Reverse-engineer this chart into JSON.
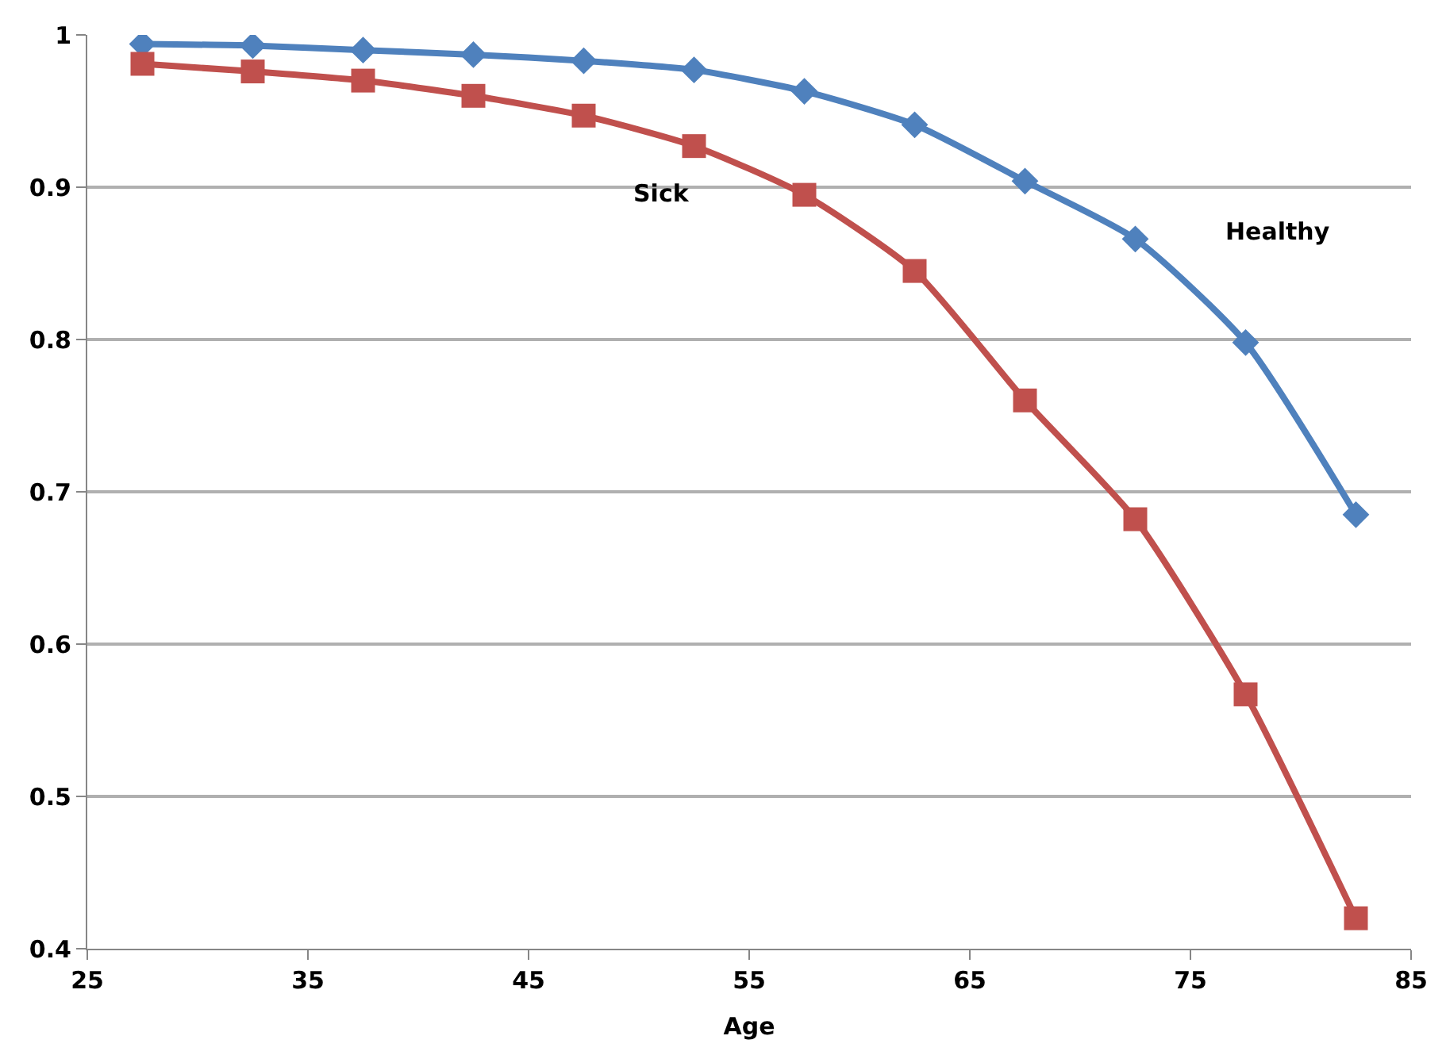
{
  "chart_data": {
    "type": "line",
    "xlabel": "Age",
    "x": [
      27.5,
      32.5,
      37.5,
      42.5,
      47.5,
      52.5,
      57.5,
      62.5,
      67.5,
      72.5,
      77.5,
      82.5
    ],
    "series": [
      {
        "name": "Healthy",
        "color": "#4f81bd",
        "marker": "diamond",
        "values": [
          0.994,
          0.993,
          0.99,
          0.987,
          0.983,
          0.977,
          0.963,
          0.941,
          0.904,
          0.866,
          0.798,
          0.685
        ]
      },
      {
        "name": "Sick",
        "color": "#c0504d",
        "marker": "square",
        "values": [
          0.981,
          0.976,
          0.97,
          0.96,
          0.947,
          0.927,
          0.895,
          0.845,
          0.76,
          0.682,
          0.567,
          0.42
        ]
      }
    ],
    "xlim": [
      25,
      85
    ],
    "xticks": [
      25,
      35,
      45,
      55,
      65,
      75,
      85
    ],
    "ylim": [
      0.4,
      1
    ],
    "yticks": [
      0.4,
      0.5,
      0.6,
      0.7,
      0.8,
      0.9,
      1
    ],
    "grid": "y",
    "legend": false,
    "line_style": "solid"
  }
}
